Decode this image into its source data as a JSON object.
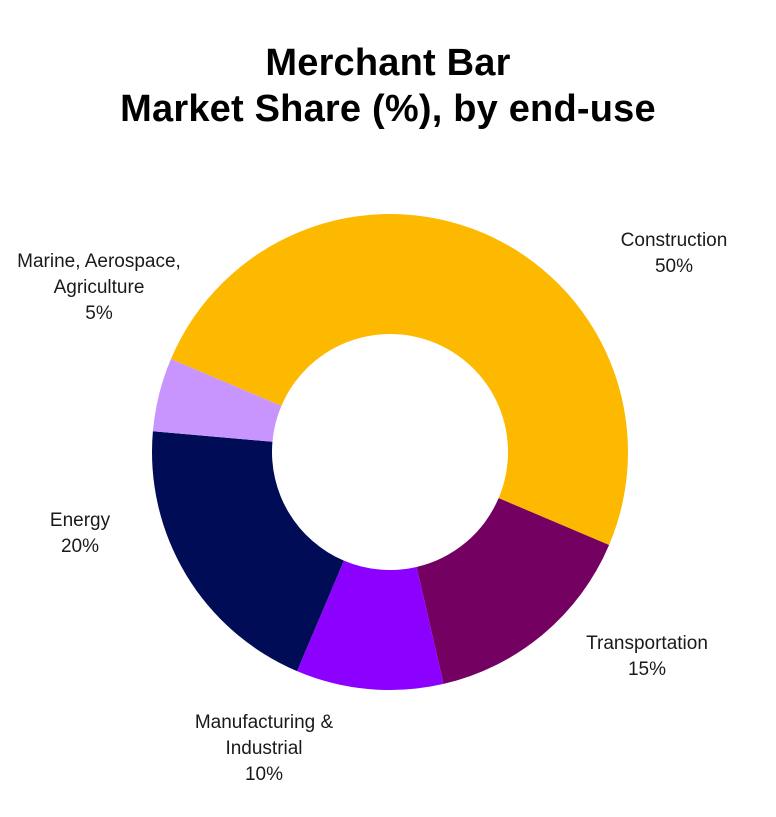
{
  "chart_data": {
    "type": "pie",
    "variant": "donut",
    "title_lines": [
      "Merchant Bar",
      "Market Share (%), by end-use"
    ],
    "unit": "%",
    "slices": [
      {
        "label_lines": [
          "Construction"
        ],
        "value": 50,
        "value_label": "50%",
        "color": "#FDB900"
      },
      {
        "label_lines": [
          "Transportation"
        ],
        "value": 15,
        "value_label": "15%",
        "color": "#740062"
      },
      {
        "label_lines": [
          "Manufacturing &",
          "Industrial"
        ],
        "value": 10,
        "value_label": "10%",
        "color": "#8C00FF"
      },
      {
        "label_lines": [
          "Energy"
        ],
        "value": 20,
        "value_label": "20%",
        "color": "#000C56"
      },
      {
        "label_lines": [
          "Marine, Aerospace,",
          "Agriculture"
        ],
        "value": 5,
        "value_label": "5%",
        "color": "#C895FF"
      }
    ],
    "legend": "none"
  }
}
